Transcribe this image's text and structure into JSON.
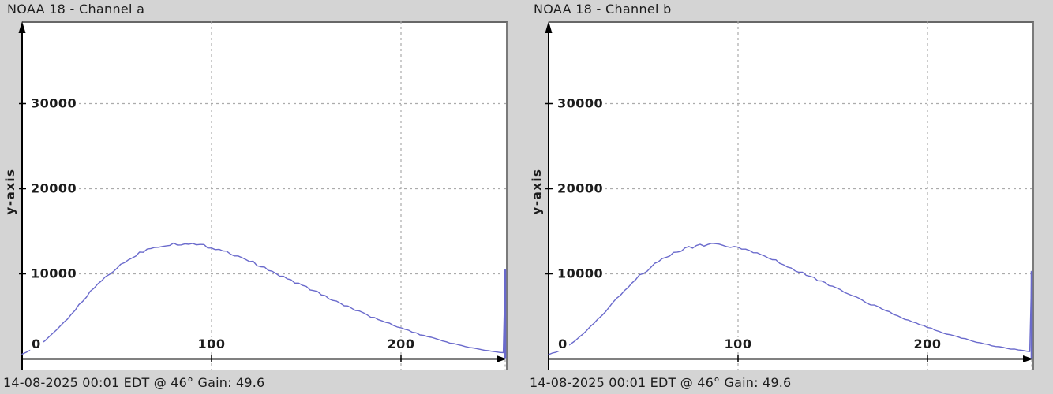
{
  "window": {
    "background": "#d4d4d4"
  },
  "colors": {
    "curve": "#6a6acc",
    "grid": "#ababab",
    "axis": "#000000",
    "frame": "#707070",
    "text": "#1c1c1c",
    "plot_background": "#ffffff"
  },
  "chart_data": [
    {
      "type": "line",
      "title": "NOAA 18 - Channel a",
      "xlabel": "",
      "ylabel": "y-axis",
      "annotation": "14-08-2025 00:01 EDT @ 46° Gain: 49.6",
      "xlim": [
        0,
        255
      ],
      "ylim": [
        0,
        35000
      ],
      "grid": true,
      "legend": false,
      "xticks": [
        {
          "value": 0,
          "label": "0"
        },
        {
          "value": 100,
          "label": "100"
        },
        {
          "value": 200,
          "label": "200"
        }
      ],
      "yticks": [
        {
          "value": 10000,
          "label": "10000"
        },
        {
          "value": 20000,
          "label": "20000"
        },
        {
          "value": 30000,
          "label": "30000"
        }
      ],
      "edge_spike": {
        "x": 255,
        "value": 10500
      },
      "points": [
        [
          0,
          600
        ],
        [
          5,
          1100
        ],
        [
          10,
          1800
        ],
        [
          15,
          2700
        ],
        [
          20,
          3800
        ],
        [
          25,
          5000
        ],
        [
          30,
          6300
        ],
        [
          35,
          7600
        ],
        [
          40,
          8800
        ],
        [
          45,
          9800
        ],
        [
          50,
          10700
        ],
        [
          55,
          11500
        ],
        [
          60,
          12200
        ],
        [
          65,
          12800
        ],
        [
          70,
          13150
        ],
        [
          75,
          13380
        ],
        [
          80,
          13520
        ],
        [
          85,
          13560
        ],
        [
          90,
          13450
        ],
        [
          95,
          13320
        ],
        [
          100,
          13120
        ],
        [
          105,
          12820
        ],
        [
          110,
          12420
        ],
        [
          115,
          12020
        ],
        [
          120,
          11520
        ],
        [
          125,
          11020
        ],
        [
          130,
          10420
        ],
        [
          135,
          9920
        ],
        [
          140,
          9420
        ],
        [
          145,
          8920
        ],
        [
          150,
          8420
        ],
        [
          155,
          7920
        ],
        [
          160,
          7350
        ],
        [
          165,
          6850
        ],
        [
          170,
          6350
        ],
        [
          175,
          5850
        ],
        [
          180,
          5350
        ],
        [
          185,
          4900
        ],
        [
          190,
          4450
        ],
        [
          195,
          4050
        ],
        [
          200,
          3650
        ],
        [
          205,
          3250
        ],
        [
          210,
          2850
        ],
        [
          215,
          2550
        ],
        [
          220,
          2250
        ],
        [
          225,
          1950
        ],
        [
          230,
          1650
        ],
        [
          235,
          1420
        ],
        [
          240,
          1200
        ],
        [
          245,
          1000
        ],
        [
          250,
          820
        ],
        [
          254,
          700
        ]
      ]
    },
    {
      "type": "line",
      "title": "NOAA 18 - Channel b",
      "xlabel": "",
      "ylabel": "y-axis",
      "annotation": "14-08-2025 00:01 EDT @ 46° Gain: 49.6",
      "xlim": [
        0,
        255
      ],
      "ylim": [
        0,
        35000
      ],
      "grid": true,
      "legend": false,
      "xticks": [
        {
          "value": 0,
          "label": "0"
        },
        {
          "value": 100,
          "label": "100"
        },
        {
          "value": 200,
          "label": "200"
        }
      ],
      "yticks": [
        {
          "value": 10000,
          "label": "10000"
        },
        {
          "value": 20000,
          "label": "20000"
        },
        {
          "value": 30000,
          "label": "30000"
        }
      ],
      "edge_spike": {
        "x": 255,
        "value": 10300
      },
      "points": [
        [
          0,
          500
        ],
        [
          5,
          900
        ],
        [
          10,
          1500
        ],
        [
          15,
          2300
        ],
        [
          20,
          3300
        ],
        [
          25,
          4400
        ],
        [
          30,
          5600
        ],
        [
          35,
          6900
        ],
        [
          40,
          8100
        ],
        [
          45,
          9200
        ],
        [
          50,
          10100
        ],
        [
          55,
          10950
        ],
        [
          60,
          11700
        ],
        [
          65,
          12300
        ],
        [
          70,
          12800
        ],
        [
          75,
          13120
        ],
        [
          80,
          13320
        ],
        [
          85,
          13420
        ],
        [
          90,
          13380
        ],
        [
          95,
          13280
        ],
        [
          100,
          13120
        ],
        [
          105,
          12850
        ],
        [
          110,
          12500
        ],
        [
          115,
          12100
        ],
        [
          120,
          11600
        ],
        [
          125,
          11050
        ],
        [
          130,
          10500
        ],
        [
          135,
          10000
        ],
        [
          140,
          9500
        ],
        [
          145,
          9000
        ],
        [
          150,
          8500
        ],
        [
          155,
          8000
        ],
        [
          160,
          7450
        ],
        [
          165,
          6950
        ],
        [
          170,
          6450
        ],
        [
          175,
          5950
        ],
        [
          180,
          5450
        ],
        [
          185,
          5000
        ],
        [
          190,
          4550
        ],
        [
          195,
          4150
        ],
        [
          200,
          3750
        ],
        [
          205,
          3350
        ],
        [
          210,
          2950
        ],
        [
          215,
          2650
        ],
        [
          220,
          2350
        ],
        [
          225,
          2050
        ],
        [
          230,
          1780
        ],
        [
          235,
          1550
        ],
        [
          240,
          1330
        ],
        [
          245,
          1150
        ],
        [
          250,
          980
        ],
        [
          254,
          880
        ]
      ]
    }
  ]
}
